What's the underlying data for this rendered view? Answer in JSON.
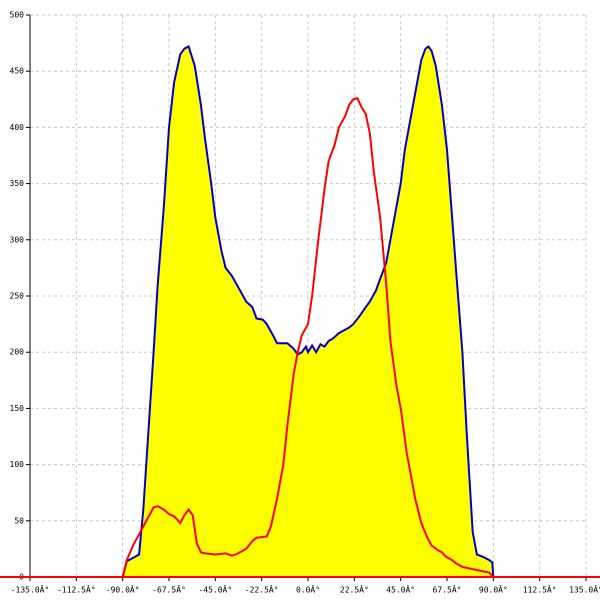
{
  "chart_data": {
    "type": "line",
    "grid": true,
    "xlim": [
      -135,
      135
    ],
    "ylim": [
      0,
      500
    ],
    "xticks": [
      {
        "value": -135,
        "label": "-135.0Â°"
      },
      {
        "value": -112.5,
        "label": "-112.5Â°"
      },
      {
        "value": -90,
        "label": "-90.0Â°"
      },
      {
        "value": -67.5,
        "label": "-67.5Â°"
      },
      {
        "value": -45,
        "label": "-45.0Â°"
      },
      {
        "value": -22.5,
        "label": "-22.5Â°"
      },
      {
        "value": 0,
        "label": "0.0Â°"
      },
      {
        "value": 22.5,
        "label": "22.5Â°"
      },
      {
        "value": 45,
        "label": "45.0Â°"
      },
      {
        "value": 67.5,
        "label": "67.5Â°"
      },
      {
        "value": 90,
        "label": "90.0Â°"
      },
      {
        "value": 112.5,
        "label": "112.5Â°"
      },
      {
        "value": 135,
        "label": "135.0Â°"
      }
    ],
    "yticks": [
      0,
      50,
      100,
      150,
      200,
      250,
      300,
      350,
      400,
      450,
      500
    ],
    "series": [
      {
        "color": "#0000cc",
        "fill": "#ffff00",
        "x": [
          -90,
          -88,
          -85,
          -82,
          -80,
          -75,
          -73,
          -70,
          -67.5,
          -65,
          -62,
          -60,
          -58,
          -55,
          -52,
          -50,
          -47,
          -45,
          -42,
          -40,
          -37,
          -33,
          -30,
          -27,
          -25,
          -22,
          -20,
          -17,
          -15,
          -12,
          -10,
          -7,
          -5,
          -3,
          -1,
          0,
          2,
          4,
          6,
          8,
          10,
          12,
          15,
          18,
          20,
          22,
          25,
          28,
          30,
          33,
          35,
          38,
          40,
          42,
          45,
          47,
          50,
          52,
          55,
          57,
          58.5,
          60,
          62,
          65,
          67.5,
          70,
          72,
          75,
          77,
          78,
          80,
          82,
          85,
          88,
          89.5,
          90
        ],
        "values": [
          0,
          14,
          17,
          20,
          60,
          200,
          260,
          330,
          400,
          440,
          465,
          470,
          472,
          455,
          420,
          390,
          350,
          320,
          290,
          275,
          268,
          255,
          245,
          240,
          230,
          229,
          225,
          215,
          208,
          208,
          208,
          203,
          198,
          200,
          205,
          200,
          206,
          200,
          207,
          205,
          210,
          212,
          217,
          220,
          222,
          225,
          232,
          240,
          245,
          255,
          265,
          280,
          300,
          320,
          350,
          380,
          410,
          430,
          460,
          470,
          472,
          468,
          455,
          420,
          380,
          320,
          270,
          200,
          130,
          100,
          40,
          20,
          18,
          15,
          13,
          0
        ]
      },
      {
        "color": "#ff0000",
        "x": [
          -90,
          -88,
          -85,
          -82,
          -80,
          -77,
          -75,
          -73,
          -70,
          -67.5,
          -65,
          -62,
          -60,
          -58,
          -56,
          -54,
          -52,
          -50,
          -45,
          -40,
          -37,
          -35,
          -30,
          -27,
          -25,
          -20,
          -18,
          -15,
          -12,
          -10,
          -7,
          -5,
          -3,
          0,
          2,
          5,
          8,
          10,
          13,
          15,
          18,
          20,
          22,
          24,
          26,
          28,
          30,
          32,
          35,
          38,
          40,
          43,
          45,
          48,
          50,
          52,
          55,
          58,
          60,
          63,
          65,
          67,
          70,
          72,
          75,
          80,
          85,
          88,
          90
        ],
        "values": [
          0,
          15,
          28,
          38,
          45,
          55,
          62,
          63,
          60,
          56,
          54,
          48,
          55,
          60,
          55,
          30,
          22,
          21,
          20,
          21,
          19,
          20,
          25,
          32,
          35,
          36,
          45,
          70,
          100,
          135,
          180,
          200,
          215,
          225,
          250,
          300,
          345,
          370,
          385,
          400,
          410,
          420,
          425,
          426,
          418,
          412,
          395,
          360,
          320,
          260,
          210,
          170,
          150,
          110,
          90,
          70,
          48,
          35,
          28,
          24,
          22,
          18,
          15,
          12,
          9,
          7,
          5,
          4,
          0
        ]
      }
    ]
  }
}
